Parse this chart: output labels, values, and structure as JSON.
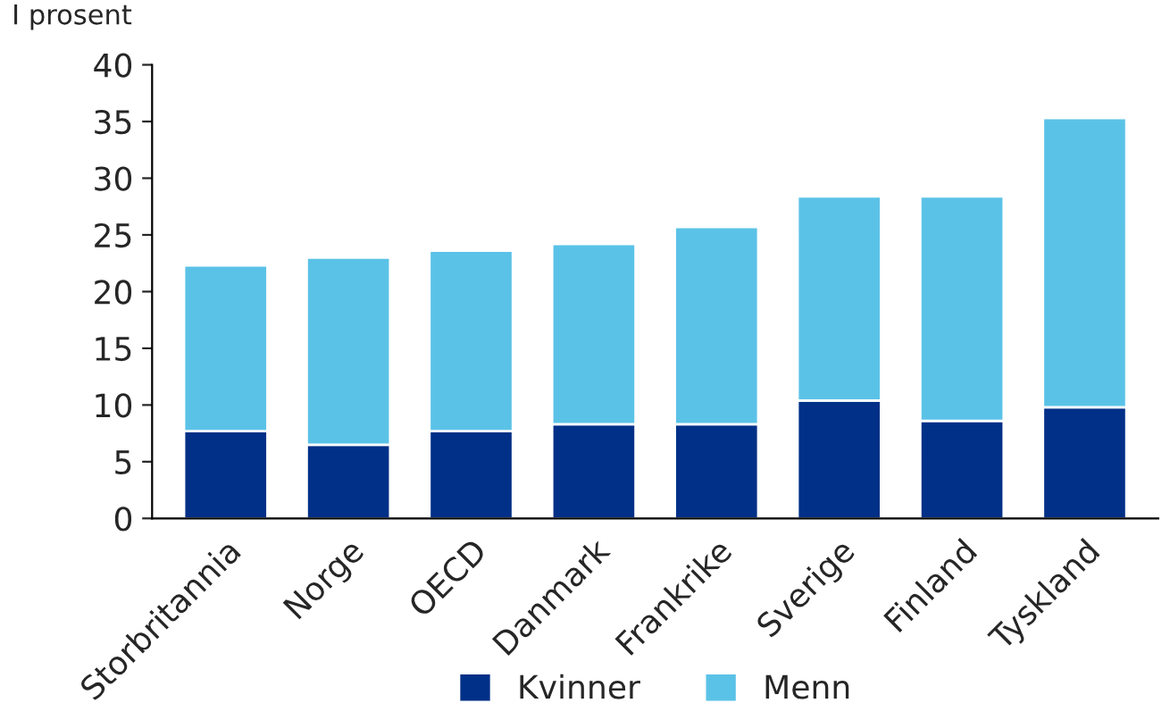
{
  "chart_data": {
    "type": "bar",
    "stacked": true,
    "ylabel": "I prosent",
    "categories": [
      "Storbritannia",
      "Norge",
      "OECD",
      "Danmark",
      "Frankrike",
      "Sverige",
      "Finland",
      "Tyskland"
    ],
    "series": [
      {
        "name": "Kvinner",
        "color": "#003087",
        "values": [
          7.7,
          6.5,
          7.7,
          8.3,
          8.3,
          10.4,
          8.6,
          9.8
        ]
      },
      {
        "name": "Menn",
        "color": "#5bc2e7",
        "values": [
          14.6,
          16.5,
          15.9,
          15.9,
          17.4,
          18.0,
          19.8,
          25.5
        ]
      }
    ],
    "ylim": [
      0,
      40
    ],
    "yticks": [
      0,
      5,
      10,
      15,
      20,
      25,
      30,
      35,
      40
    ],
    "grid": false,
    "legend": "bottom"
  }
}
